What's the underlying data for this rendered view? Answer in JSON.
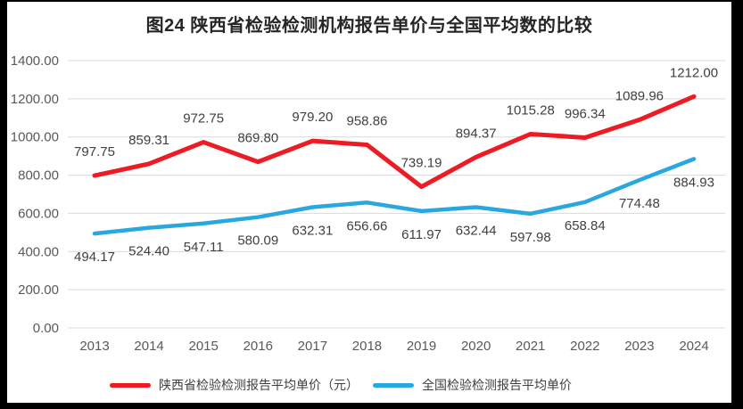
{
  "title": "图24 陕西省检验检测机构报告单价与全国平均数的比较",
  "colors": {
    "frame": "#000000",
    "background": "#ffffff",
    "grid": "#d9d9d9",
    "axis_text": "#595959",
    "label_text": "#404040",
    "title_text": "#262626",
    "red_series": "#ED1C24",
    "blue_series": "#29A8DF"
  },
  "chart_data": {
    "type": "line",
    "title": "图24 陕西省检验检测机构报告单价与全国平均数的比较",
    "categories": [
      "2013",
      "2014",
      "2015",
      "2016",
      "2017",
      "2018",
      "2019",
      "2020",
      "2021",
      "2022",
      "2023",
      "2024"
    ],
    "series": [
      {
        "name": "陕西省检验检测报告平均单价（元）",
        "color": "#ED1C24",
        "stroke_width": 5,
        "label_position": "above",
        "values": [
          797.75,
          859.31,
          972.75,
          869.8,
          979.2,
          958.86,
          739.19,
          894.37,
          1015.28,
          996.34,
          1089.96,
          1212.0
        ]
      },
      {
        "name": "全国检验检测报告平均单价",
        "color": "#29A8DF",
        "stroke_width": 4.5,
        "label_position": "below",
        "values": [
          494.17,
          524.4,
          547.11,
          580.09,
          632.31,
          656.66,
          611.97,
          632.44,
          597.98,
          658.84,
          774.48,
          884.93
        ]
      }
    ],
    "xlabel": "",
    "ylabel": "",
    "ylim": [
      0,
      1400
    ],
    "ytick_step": 200,
    "ytick_format": "0.00",
    "grid": "horizontal",
    "legend_position": "bottom"
  }
}
